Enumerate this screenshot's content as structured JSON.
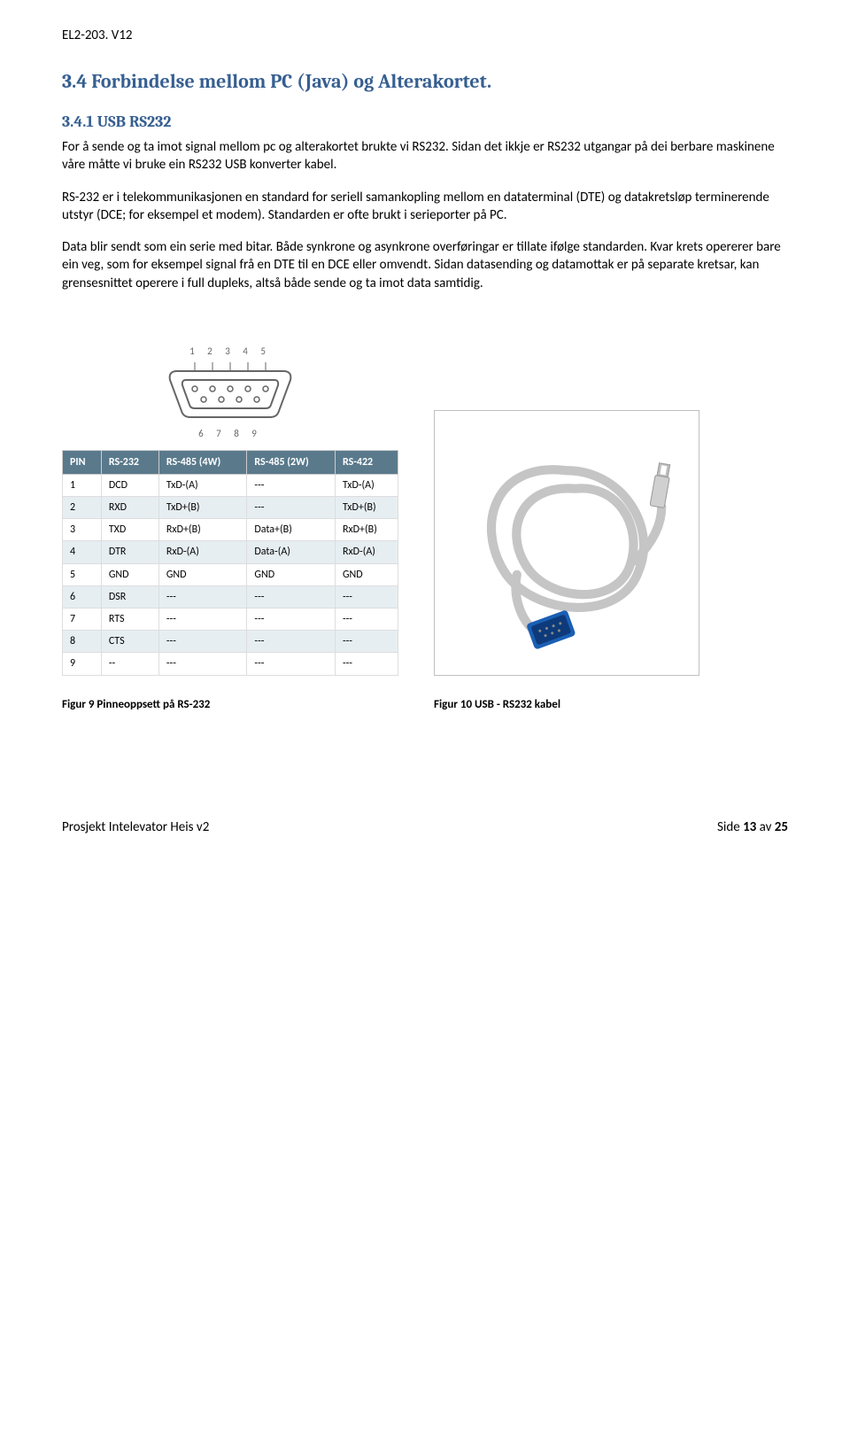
{
  "header": {
    "doc_id": "EL2-203. V12"
  },
  "section": {
    "title": "3.4 Forbindelse mellom PC (Java) og Alterakortet.",
    "subtitle": "3.4.1 USB RS232"
  },
  "paragraphs": {
    "p1": "For å sende og ta imot signal mellom pc og alterakortet brukte vi RS232. Sidan det ikkje er RS232 utgangar på dei berbare maskinene våre måtte vi bruke ein RS232 USB konverter kabel.",
    "p2": "RS-232 er i telekommunikasjonen en standard for seriell samankopling mellom en dataterminal (DTE) og datakretsløp terminerende utstyr (DCE; for eksempel et modem). Standarden er ofte brukt i serieporter på PC.",
    "p3": "Data blir sendt som ein serie med bitar. Både synkrone og asynkrone overføringar er tillate ifølge standarden. Kvar krets opererer bare ein veg, som for eksempel signal frå en DTE til en DCE eller omvendt. Sidan datasending og datamottak er på separate kretsar, kan grensesnittet operere i full dupleks, altså både sende og ta imot data samtidig."
  },
  "connector": {
    "pins_top": "1  2  3  4  5",
    "pins_bottom": "6  7  8  9"
  },
  "pin_table": {
    "type": "table",
    "header_bg": "#5a7a8c",
    "header_fg": "#ffffff",
    "row_odd_bg": "#e6eef2",
    "row_even_bg": "#ffffff",
    "border_color": "#dddddd",
    "columns": [
      "PIN",
      "RS-232",
      "RS-485 (4W)",
      "RS-485 (2W)",
      "RS-422"
    ],
    "rows": [
      [
        "1",
        "DCD",
        "TxD-(A)",
        "---",
        "TxD-(A)"
      ],
      [
        "2",
        "RXD",
        "TxD+(B)",
        "---",
        "TxD+(B)"
      ],
      [
        "3",
        "TXD",
        "RxD+(B)",
        "Data+(B)",
        "RxD+(B)"
      ],
      [
        "4",
        "DTR",
        "RxD-(A)",
        "Data-(A)",
        "RxD-(A)"
      ],
      [
        "5",
        "GND",
        "GND",
        "GND",
        "GND"
      ],
      [
        "6",
        "DSR",
        "---",
        "---",
        "---"
      ],
      [
        "7",
        "RTS",
        "---",
        "---",
        "---"
      ],
      [
        "8",
        "CTS",
        "---",
        "---",
        "---"
      ],
      [
        "9",
        "--",
        "---",
        "---",
        "---"
      ]
    ]
  },
  "captions": {
    "fig9": "Figur 9 Pinneoppsett på RS-232",
    "fig10": "Figur 10 USB - RS232 kabel"
  },
  "cable_figure": {
    "border_color": "#c0c0c0",
    "connector_color": "#1a5fb4",
    "cable_color": "#c5c5c5",
    "usb_color": "#d0d0d0"
  },
  "footer": {
    "left": "Prosjekt Intelevator Heis v2",
    "right_prefix": "Side ",
    "page_current": "13",
    "right_mid": " av ",
    "page_total": "25"
  },
  "colors": {
    "heading": "#365f91",
    "text": "#000000",
    "bg": "#ffffff"
  }
}
